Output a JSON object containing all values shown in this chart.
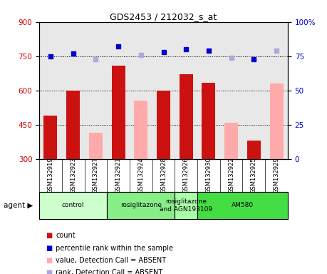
{
  "title": "GDS2453 / 212032_s_at",
  "samples": [
    "GSM132919",
    "GSM132923",
    "GSM132927",
    "GSM132921",
    "GSM132924",
    "GSM132928",
    "GSM132926",
    "GSM132930",
    "GSM132922",
    "GSM132925",
    "GSM132929"
  ],
  "bar_values": [
    490,
    600,
    null,
    710,
    null,
    600,
    670,
    635,
    null,
    380,
    null
  ],
  "bar_values_absent": [
    null,
    null,
    415,
    null,
    555,
    null,
    null,
    null,
    460,
    null,
    630
  ],
  "rank_values": [
    75,
    77,
    null,
    82,
    null,
    78,
    80,
    79,
    null,
    73,
    null
  ],
  "rank_values_absent": [
    null,
    null,
    73,
    null,
    76,
    null,
    null,
    null,
    74,
    null,
    79
  ],
  "ylim_left": [
    300,
    900
  ],
  "ylim_right": [
    0,
    100
  ],
  "yticks_left": [
    300,
    450,
    600,
    750,
    900
  ],
  "yticks_right": [
    0,
    25,
    50,
    75,
    100
  ],
  "agent_groups": [
    {
      "label": "control",
      "start": 0,
      "end": 3,
      "color": "#ccffcc"
    },
    {
      "label": "rosiglitazone",
      "start": 3,
      "end": 6,
      "color": "#88ee88"
    },
    {
      "label": "rosiglitazone\nand AGN193109",
      "start": 6,
      "end": 7,
      "color": "#aaffaa"
    },
    {
      "label": "AM580",
      "start": 7,
      "end": 11,
      "color": "#44dd44"
    }
  ],
  "bar_color": "#cc1111",
  "bar_absent_color": "#ffaaaa",
  "rank_color": "#0000cc",
  "rank_absent_color": "#aaaadd",
  "bg_color": "#e0e0e0",
  "plot_bg_color": "#e8e8e8",
  "dotted_line_color": "#000000",
  "ylabel_left_color": "#cc0000",
  "ylabel_right_color": "#0000cc",
  "legend_items": [
    {
      "color": "#cc1111",
      "label": "count"
    },
    {
      "color": "#0000cc",
      "label": "percentile rank within the sample"
    },
    {
      "color": "#ffaaaa",
      "label": "value, Detection Call = ABSENT"
    },
    {
      "color": "#aaaadd",
      "label": "rank, Detection Call = ABSENT"
    }
  ]
}
